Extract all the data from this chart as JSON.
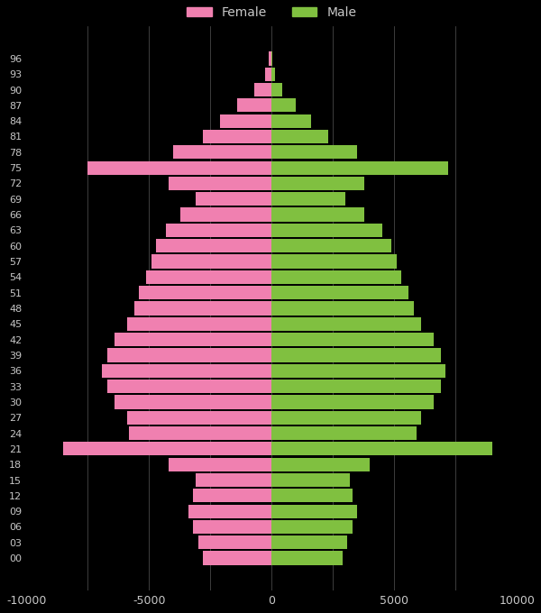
{
  "background_color": "#000000",
  "text_color": "#c8c8c8",
  "female_color": "#f080b0",
  "male_color": "#80c040",
  "grid_color": "#555555",
  "xlim": [
    -10000,
    10000
  ],
  "xticks": [
    -10000,
    -5000,
    0,
    5000,
    10000
  ],
  "age_groups": [
    "00",
    "03",
    "06",
    "09",
    "12",
    "15",
    "18",
    "21",
    "24",
    "27",
    "30",
    "33",
    "36",
    "39",
    "42",
    "45",
    "48",
    "51",
    "54",
    "57",
    "60",
    "63",
    "66",
    "69",
    "72",
    "75",
    "78",
    "81",
    "84",
    "87",
    "90",
    "93",
    "96"
  ],
  "female": [
    2800,
    3000,
    3200,
    3400,
    3200,
    3100,
    4200,
    8500,
    5800,
    5900,
    6400,
    6700,
    6900,
    6700,
    6400,
    5900,
    5600,
    5400,
    5100,
    4900,
    4700,
    4300,
    3700,
    3100,
    4200,
    7500,
    4000,
    2800,
    2100,
    1400,
    700,
    280,
    100
  ],
  "male": [
    2900,
    3100,
    3300,
    3500,
    3300,
    3200,
    4000,
    9000,
    5900,
    6100,
    6600,
    6900,
    7100,
    6900,
    6600,
    6100,
    5800,
    5600,
    5300,
    5100,
    4900,
    4500,
    3800,
    3000,
    3800,
    7200,
    3500,
    2300,
    1600,
    1000,
    450,
    160,
    50
  ]
}
